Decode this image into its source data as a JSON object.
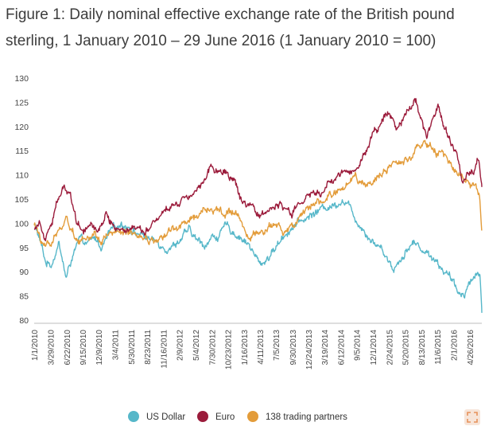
{
  "title": {
    "line1": "Figure 1: Daily nominal effective exchange rate of the British pound",
    "line2": "sterling, 1 January 2010 – 29 June 2016  (1 January 2010 = 100)"
  },
  "chart_data": {
    "type": "line",
    "title": "Figure 1: Daily nominal effective exchange rate of the British pound sterling, 1 January 2010 – 29 June 2016  (1 January 2010 = 100)",
    "xlabel": "",
    "ylabel": "",
    "ylim": [
      80,
      130
    ],
    "yticks": [
      80,
      85,
      90,
      95,
      100,
      105,
      110,
      115,
      120,
      125,
      130
    ],
    "xlim_days": [
      0,
      2371
    ],
    "xticks": [
      {
        "label": "1/1/2010",
        "day": 0
      },
      {
        "label": "3/29/2010",
        "day": 87
      },
      {
        "label": "6/22/2010",
        "day": 172
      },
      {
        "label": "9/15/2010",
        "day": 257
      },
      {
        "label": "12/9/2010",
        "day": 342
      },
      {
        "label": "3/4/2011",
        "day": 427
      },
      {
        "label": "5/30/2011",
        "day": 514
      },
      {
        "label": "8/23/2011",
        "day": 599
      },
      {
        "label": "11/16/2011",
        "day": 684
      },
      {
        "label": "2/9/2012",
        "day": 769
      },
      {
        "label": "5/4/2012",
        "day": 854
      },
      {
        "label": "7/30/2012",
        "day": 941
      },
      {
        "label": "10/23/2012",
        "day": 1026
      },
      {
        "label": "1/16/2013",
        "day": 1111
      },
      {
        "label": "4/11/2013",
        "day": 1196
      },
      {
        "label": "7/5/2013",
        "day": 1281
      },
      {
        "label": "9/30/2013",
        "day": 1368
      },
      {
        "label": "12/24/2013",
        "day": 1453
      },
      {
        "label": "3/19/2014",
        "day": 1538
      },
      {
        "label": "6/12/2014",
        "day": 1623
      },
      {
        "label": "9/5/2014",
        "day": 1708
      },
      {
        "label": "12/1/2014",
        "day": 1795
      },
      {
        "label": "2/24/2015",
        "day": 1880
      },
      {
        "label": "5/20/2015",
        "day": 1965
      },
      {
        "label": "8/13/2015",
        "day": 2050
      },
      {
        "label": "11/6/2015",
        "day": 2135
      },
      {
        "label": "2/1/2016",
        "day": 2222
      },
      {
        "label": "4/26/2016",
        "day": 2307
      }
    ],
    "series": [
      {
        "name": "US Dollar",
        "color": "#56b7c9",
        "x": [
          0,
          30,
          60,
          90,
          130,
          170,
          200,
          240,
          280,
          320,
          360,
          400,
          430,
          460,
          500,
          540,
          580,
          620,
          660,
          700,
          740,
          780,
          820,
          860,
          900,
          940,
          980,
          1020,
          1060,
          1100,
          1140,
          1170,
          1200,
          1240,
          1280,
          1320,
          1360,
          1400,
          1440,
          1480,
          1520,
          1560,
          1600,
          1630,
          1660,
          1690,
          1720,
          1760,
          1800,
          1840,
          1870,
          1900,
          1930,
          1970,
          2010,
          2050,
          2090,
          2120,
          2150,
          2180,
          2220,
          2250,
          2280,
          2310,
          2340,
          2360,
          2371
        ],
        "values": [
          100,
          96.5,
          92,
          91.5,
          96,
          88.5,
          93,
          96.5,
          95.5,
          97,
          95,
          98,
          99,
          100,
          99.5,
          98,
          97.5,
          96.5,
          96,
          95,
          95.5,
          97,
          98.5,
          96.5,
          95.5,
          97,
          97.5,
          99.5,
          98,
          97,
          95.5,
          93,
          91.5,
          93,
          95,
          97.5,
          99,
          100,
          101,
          102,
          103,
          103.5,
          104,
          105,
          104,
          102,
          100,
          98,
          96,
          95,
          93,
          90.5,
          92,
          94.5,
          96,
          95,
          93.5,
          93,
          91,
          90,
          87.5,
          85.5,
          86,
          88,
          89.5,
          90,
          81.5
        ]
      },
      {
        "name": "Euro",
        "color": "#9b1b3b",
        "x": [
          0,
          30,
          60,
          90,
          120,
          160,
          190,
          220,
          260,
          300,
          340,
          380,
          420,
          460,
          500,
          540,
          580,
          620,
          660,
          700,
          740,
          780,
          820,
          860,
          900,
          940,
          980,
          1020,
          1060,
          1100,
          1130,
          1160,
          1200,
          1240,
          1280,
          1320,
          1360,
          1400,
          1440,
          1480,
          1520,
          1560,
          1600,
          1640,
          1680,
          1720,
          1760,
          1800,
          1840,
          1880,
          1920,
          1960,
          1990,
          2020,
          2050,
          2080,
          2110,
          2140,
          2170,
          2200,
          2240,
          2270,
          2300,
          2330,
          2350,
          2371
        ],
        "values": [
          99,
          100.5,
          97.5,
          100,
          104,
          107.5,
          106.5,
          101,
          98.5,
          100.5,
          98.5,
          102,
          99.5,
          98.5,
          99,
          99.5,
          98.5,
          100,
          101.5,
          103,
          104,
          105,
          106,
          107,
          109.5,
          112,
          110.5,
          110,
          109,
          104,
          103,
          102.5,
          101.5,
          102.5,
          104,
          103,
          102,
          103.5,
          105,
          106.5,
          106,
          108,
          109,
          111,
          111,
          112,
          115,
          119,
          121,
          123,
          120,
          122,
          124.5,
          125.5,
          122,
          118,
          121,
          124.5,
          120,
          117,
          114,
          109,
          111,
          111,
          114,
          107.5
        ]
      },
      {
        "name": "138 trading partners",
        "color": "#e39c3a",
        "x": [
          0,
          30,
          60,
          90,
          130,
          170,
          200,
          240,
          280,
          320,
          360,
          400,
          440,
          480,
          520,
          560,
          600,
          640,
          680,
          720,
          760,
          800,
          840,
          880,
          920,
          960,
          1000,
          1040,
          1080,
          1110,
          1140,
          1180,
          1220,
          1260,
          1300,
          1340,
          1380,
          1420,
          1460,
          1500,
          1540,
          1580,
          1620,
          1660,
          1700,
          1740,
          1780,
          1820,
          1860,
          1900,
          1940,
          1980,
          2010,
          2040,
          2070,
          2100,
          2130,
          2160,
          2190,
          2220,
          2250,
          2280,
          2310,
          2340,
          2360,
          2371
        ],
        "values": [
          100,
          97,
          95,
          95.5,
          99,
          101,
          98.5,
          96.5,
          97,
          98,
          96.5,
          98,
          98,
          97.5,
          97.5,
          97,
          97,
          96,
          97,
          98.5,
          99,
          100,
          101,
          102,
          103,
          103,
          102.5,
          102.5,
          102,
          98,
          96.5,
          97.5,
          98.5,
          99.5,
          99,
          98.5,
          99.5,
          101,
          103,
          104.5,
          105,
          106,
          107,
          108,
          109,
          108,
          108.5,
          110,
          111,
          112,
          112,
          113.5,
          115,
          116,
          117.5,
          116,
          114,
          115.5,
          113,
          111,
          110,
          109,
          108,
          107.5,
          105,
          98.5
        ]
      }
    ],
    "legend_position": "bottom-center"
  }
}
